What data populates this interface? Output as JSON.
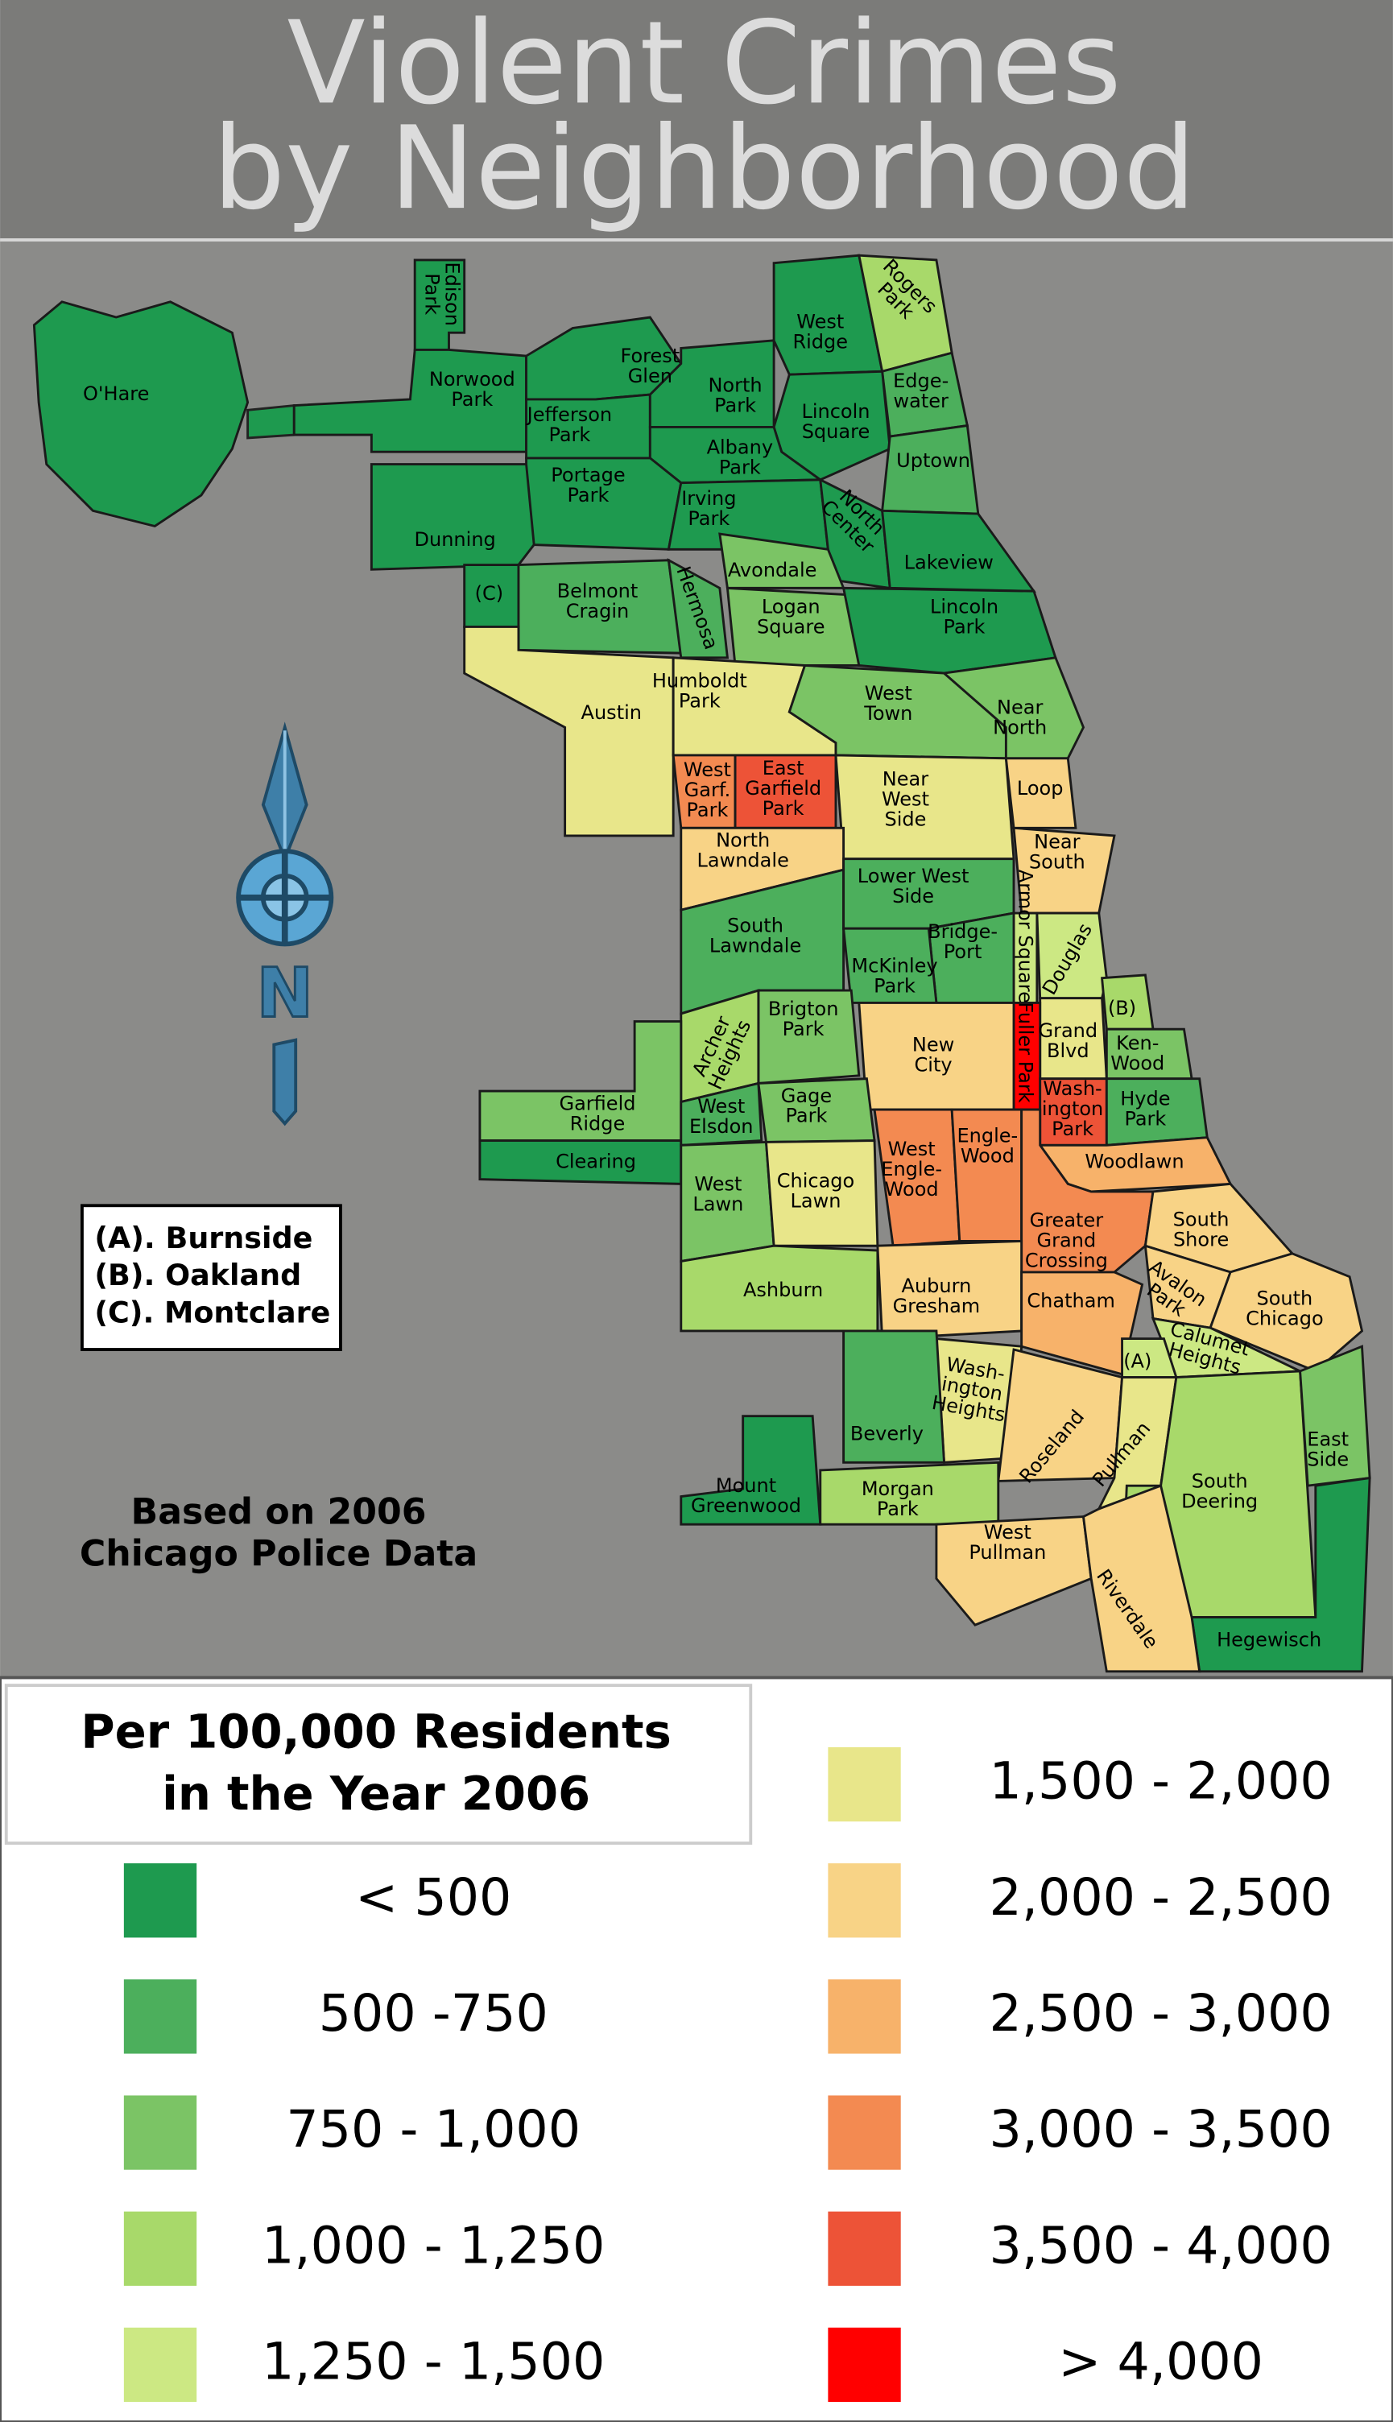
{
  "title": "Violent Crimes\nby Neighborhood",
  "compass": "N",
  "key": [
    "(A). Burnside",
    "(B). Oakland",
    "(C). Montclare"
  ],
  "note": "Based on 2006\nChicago Police Data",
  "legend": {
    "title": "Per 100,000 Residents\nin the Year 2006",
    "items": [
      {
        "label": "< 500",
        "color": "#1e9a4f"
      },
      {
        "label": "500 -750",
        "color": "#4caf5c"
      },
      {
        "label": "750 - 1,000",
        "color": "#7bc465"
      },
      {
        "label": "1,000 - 1,250",
        "color": "#a8d96a"
      },
      {
        "label": "1,250 - 1,500",
        "color": "#cce883"
      },
      {
        "label": "1,500 - 2,000",
        "color": "#e8e68a"
      },
      {
        "label": "2,000 - 2,500",
        "color": "#f8d386"
      },
      {
        "label": "2,500 - 3,000",
        "color": "#f7b26a"
      },
      {
        "label": "3,000 - 3,500",
        "color": "#f38a51"
      },
      {
        "label": "3,500 - 4,000",
        "color": "#ed5337"
      },
      {
        "label": "> 4,000",
        "color": "#ff0000"
      }
    ]
  },
  "neighborhoods": [
    {
      "label": "O'Hare",
      "level": 0
    },
    {
      "label": "Edison\nPark",
      "level": 0
    },
    {
      "label": "Norwood\nPark",
      "level": 0
    },
    {
      "label": "Forest\nGlen",
      "level": 0
    },
    {
      "label": "Jefferson\nPark",
      "level": 0
    },
    {
      "label": "North\nPark",
      "level": 0
    },
    {
      "label": "West\nRidge",
      "level": 0
    },
    {
      "label": "Rogers\nPark",
      "level": 3
    },
    {
      "label": "Edge-\nwater",
      "level": 1
    },
    {
      "label": "Lincoln\nSquare",
      "level": 0
    },
    {
      "label": "Albany\nPark",
      "level": 0
    },
    {
      "label": "Uptown",
      "level": 1
    },
    {
      "label": "Portage\nPark",
      "level": 0
    },
    {
      "label": "Irving\nPark",
      "level": 0
    },
    {
      "label": "North\nCenter",
      "level": 0
    },
    {
      "label": "Lakeview",
      "level": 0
    },
    {
      "label": "Dunning",
      "level": 0
    },
    {
      "label": "(C)",
      "level": 0
    },
    {
      "label": "Belmont\nCragin",
      "level": 1
    },
    {
      "label": "Hermosa",
      "level": 1
    },
    {
      "label": "Avondale",
      "level": 2
    },
    {
      "label": "Logan\nSquare",
      "level": 2
    },
    {
      "label": "Lincoln\nPark",
      "level": 0
    },
    {
      "label": "Austin",
      "level": 5
    },
    {
      "label": "Humboldt\nPark",
      "level": 5
    },
    {
      "label": "West\nTown",
      "level": 2
    },
    {
      "label": "Near\nNorth",
      "level": 2
    },
    {
      "label": "West\nGarf.\nPark",
      "level": 8
    },
    {
      "label": "East\nGarfield\nPark",
      "level": 9
    },
    {
      "label": "Near\nWest\nSide",
      "level": 5
    },
    {
      "label": "Loop",
      "level": 6
    },
    {
      "label": "North\nLawndale",
      "level": 6
    },
    {
      "label": "Near\nSouth",
      "level": 6
    },
    {
      "label": "South\nLawndale",
      "level": 1
    },
    {
      "label": "Lower West\nSide",
      "level": 1
    },
    {
      "label": "Armor Square",
      "level": 4
    },
    {
      "label": "Bridge-\nPort",
      "level": 1
    },
    {
      "label": "McKinley\nPark",
      "level": 1
    },
    {
      "label": "Douglas",
      "level": 4
    },
    {
      "label": "(B)",
      "level": 3
    },
    {
      "label": "Brigton\nPark",
      "level": 2
    },
    {
      "label": "Archer\nHeights",
      "level": 3
    },
    {
      "label": "Grand\nBlvd",
      "level": 5
    },
    {
      "label": "Fuller Park",
      "level": 10
    },
    {
      "label": "Ken-\nWood",
      "level": 2
    },
    {
      "label": "New\nCity",
      "level": 6
    },
    {
      "label": "Garfield\nRidge",
      "level": 2
    },
    {
      "label": "Clearing",
      "level": 0
    },
    {
      "label": "West\nElsdon",
      "level": 1
    },
    {
      "label": "Gage\nPark",
      "level": 2
    },
    {
      "label": "Wash-\nington\nPark",
      "level": 9
    },
    {
      "label": "Hyde\nPark",
      "level": 1
    },
    {
      "label": "West\nLawn",
      "level": 2
    },
    {
      "label": "Chicago\nLawn",
      "level": 5
    },
    {
      "label": "West\nEngle-\nWood",
      "level": 8
    },
    {
      "label": "Engle-\nWood",
      "level": 8
    },
    {
      "label": "Woodlawn",
      "level": 7
    },
    {
      "label": "Greater\nGrand\nCrossing",
      "level": 8
    },
    {
      "label": "South\nShore",
      "level": 6
    },
    {
      "label": "Ashburn",
      "level": 3
    },
    {
      "label": "Auburn\nGresham",
      "level": 6
    },
    {
      "label": "Chatham",
      "level": 7
    },
    {
      "label": "Avalon\nPark",
      "level": 6
    },
    {
      "label": "South\nChicago",
      "level": 6
    },
    {
      "label": "Calumet\nHeights",
      "level": 4
    },
    {
      "label": "(A)",
      "level": 4
    },
    {
      "label": "Wash-\nington\nHeights",
      "level": 5
    },
    {
      "label": "Beverly",
      "level": 1
    },
    {
      "label": "Roseland",
      "level": 6
    },
    {
      "label": "Pullman",
      "level": 5
    },
    {
      "label": "South\nDeering",
      "level": 3
    },
    {
      "label": "East\nSide",
      "level": 2
    },
    {
      "label": "Hegewisch",
      "level": 0
    },
    {
      "label": "Mount\nGreenwood",
      "level": 0
    },
    {
      "label": "Morgan\nPark",
      "level": 3
    },
    {
      "label": "West\nPullman",
      "level": 6
    },
    {
      "label": "Riverdale",
      "level": 6
    }
  ]
}
